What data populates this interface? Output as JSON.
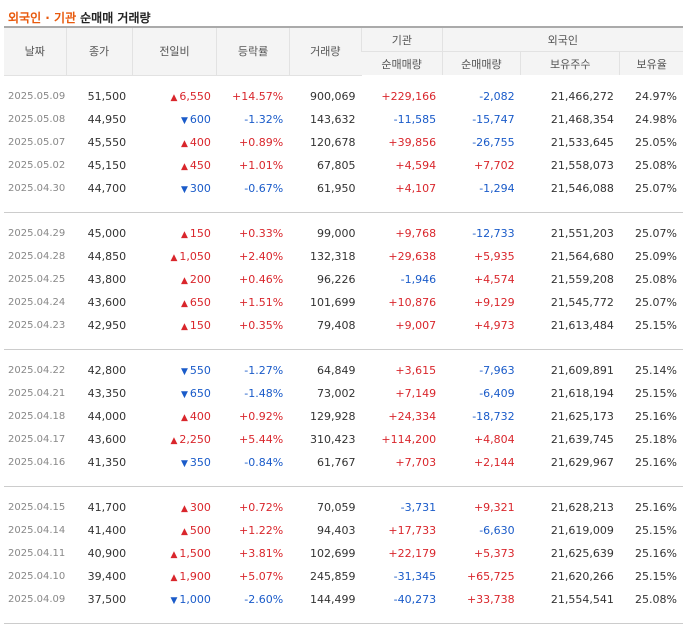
{
  "title": {
    "highlight": "외국인 · 기관",
    "rest": "순매매 거래량"
  },
  "headers": {
    "date": "날짜",
    "close": "종가",
    "change": "전일비",
    "rate": "등락률",
    "volume": "거래량",
    "inst_group": "기관",
    "inst_net": "순매매량",
    "foreign_group": "외국인",
    "foreign_net": "순매매량",
    "foreign_shares": "보유주수",
    "foreign_ratio": "보유율"
  },
  "groups": [
    [
      {
        "date": "2025.05.09",
        "close": "51,500",
        "dir": "up",
        "change": "6,550",
        "rate": "+14.57%",
        "volume": "900,069",
        "inst": "+229,166",
        "foreign": "-2,082",
        "shares": "21,466,272",
        "ratio": "24.97%"
      },
      {
        "date": "2025.05.08",
        "close": "44,950",
        "dir": "down",
        "change": "600",
        "rate": "-1.32%",
        "volume": "143,632",
        "inst": "-11,585",
        "foreign": "-15,747",
        "shares": "21,468,354",
        "ratio": "24.98%"
      },
      {
        "date": "2025.05.07",
        "close": "45,550",
        "dir": "up",
        "change": "400",
        "rate": "+0.89%",
        "volume": "120,678",
        "inst": "+39,856",
        "foreign": "-26,755",
        "shares": "21,533,645",
        "ratio": "25.05%"
      },
      {
        "date": "2025.05.02",
        "close": "45,150",
        "dir": "up",
        "change": "450",
        "rate": "+1.01%",
        "volume": "67,805",
        "inst": "+4,594",
        "foreign": "+7,702",
        "shares": "21,558,073",
        "ratio": "25.08%"
      },
      {
        "date": "2025.04.30",
        "close": "44,700",
        "dir": "down",
        "change": "300",
        "rate": "-0.67%",
        "volume": "61,950",
        "inst": "+4,107",
        "foreign": "-1,294",
        "shares": "21,546,088",
        "ratio": "25.07%"
      }
    ],
    [
      {
        "date": "2025.04.29",
        "close": "45,000",
        "dir": "up",
        "change": "150",
        "rate": "+0.33%",
        "volume": "99,000",
        "inst": "+9,768",
        "foreign": "-12,733",
        "shares": "21,551,203",
        "ratio": "25.07%"
      },
      {
        "date": "2025.04.28",
        "close": "44,850",
        "dir": "up",
        "change": "1,050",
        "rate": "+2.40%",
        "volume": "132,318",
        "inst": "+29,638",
        "foreign": "+5,935",
        "shares": "21,564,680",
        "ratio": "25.09%"
      },
      {
        "date": "2025.04.25",
        "close": "43,800",
        "dir": "up",
        "change": "200",
        "rate": "+0.46%",
        "volume": "96,226",
        "inst": "-1,946",
        "foreign": "+4,574",
        "shares": "21,559,208",
        "ratio": "25.08%"
      },
      {
        "date": "2025.04.24",
        "close": "43,600",
        "dir": "up",
        "change": "650",
        "rate": "+1.51%",
        "volume": "101,699",
        "inst": "+10,876",
        "foreign": "+9,129",
        "shares": "21,545,772",
        "ratio": "25.07%"
      },
      {
        "date": "2025.04.23",
        "close": "42,950",
        "dir": "up",
        "change": "150",
        "rate": "+0.35%",
        "volume": "79,408",
        "inst": "+9,007",
        "foreign": "+4,973",
        "shares": "21,613,484",
        "ratio": "25.15%"
      }
    ],
    [
      {
        "date": "2025.04.22",
        "close": "42,800",
        "dir": "down",
        "change": "550",
        "rate": "-1.27%",
        "volume": "64,849",
        "inst": "+3,615",
        "foreign": "-7,963",
        "shares": "21,609,891",
        "ratio": "25.14%"
      },
      {
        "date": "2025.04.21",
        "close": "43,350",
        "dir": "down",
        "change": "650",
        "rate": "-1.48%",
        "volume": "73,002",
        "inst": "+7,149",
        "foreign": "-6,409",
        "shares": "21,618,194",
        "ratio": "25.15%"
      },
      {
        "date": "2025.04.18",
        "close": "44,000",
        "dir": "up",
        "change": "400",
        "rate": "+0.92%",
        "volume": "129,928",
        "inst": "+24,334",
        "foreign": "-18,732",
        "shares": "21,625,173",
        "ratio": "25.16%"
      },
      {
        "date": "2025.04.17",
        "close": "43,600",
        "dir": "up",
        "change": "2,250",
        "rate": "+5.44%",
        "volume": "310,423",
        "inst": "+114,200",
        "foreign": "+4,804",
        "shares": "21,639,745",
        "ratio": "25.18%"
      },
      {
        "date": "2025.04.16",
        "close": "41,350",
        "dir": "down",
        "change": "350",
        "rate": "-0.84%",
        "volume": "61,767",
        "inst": "+7,703",
        "foreign": "+2,144",
        "shares": "21,629,967",
        "ratio": "25.16%"
      }
    ],
    [
      {
        "date": "2025.04.15",
        "close": "41,700",
        "dir": "up",
        "change": "300",
        "rate": "+0.72%",
        "volume": "70,059",
        "inst": "-3,731",
        "foreign": "+9,321",
        "shares": "21,628,213",
        "ratio": "25.16%"
      },
      {
        "date": "2025.04.14",
        "close": "41,400",
        "dir": "up",
        "change": "500",
        "rate": "+1.22%",
        "volume": "94,403",
        "inst": "+17,733",
        "foreign": "-6,630",
        "shares": "21,619,009",
        "ratio": "25.15%"
      },
      {
        "date": "2025.04.11",
        "close": "40,900",
        "dir": "up",
        "change": "1,500",
        "rate": "+3.81%",
        "volume": "102,699",
        "inst": "+22,179",
        "foreign": "+5,373",
        "shares": "21,625,639",
        "ratio": "25.16%"
      },
      {
        "date": "2025.04.10",
        "close": "39,400",
        "dir": "up",
        "change": "1,900",
        "rate": "+5.07%",
        "volume": "245,859",
        "inst": "-31,345",
        "foreign": "+65,725",
        "shares": "21,620,266",
        "ratio": "25.15%"
      },
      {
        "date": "2025.04.09",
        "close": "37,500",
        "dir": "down",
        "change": "1,000",
        "rate": "-2.60%",
        "volume": "144,499",
        "inst": "-40,273",
        "foreign": "+33,738",
        "shares": "21,554,541",
        "ratio": "25.08%"
      }
    ]
  ],
  "colors": {
    "up": "#d9262c",
    "down": "#1a5bc9",
    "title_highlight": "#e8590c"
  },
  "icons": {
    "up": "triangle-up-icon",
    "down": "triangle-down-icon"
  }
}
